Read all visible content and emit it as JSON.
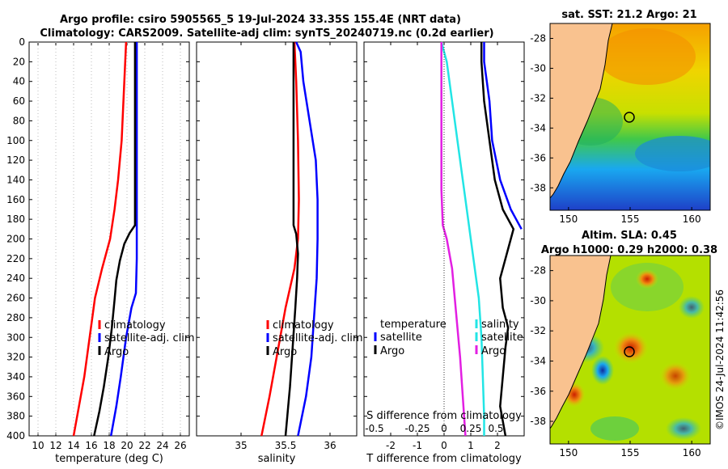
{
  "title": {
    "line1": "Argo profile: csiro 5905565_5 19-Jul-2024 33.35S 155.4E (NRT data)",
    "line2": "Climatology: CARS2009. Satellite-adj clim: synTS_20240719.nc (0.2d earlier)"
  },
  "colors": {
    "climatology": "#ff0000",
    "satellite": "#0000ff",
    "argo": "#000000",
    "cyan": "#22e5e5",
    "magenta": "#e21fe2",
    "land": "#f9c28f"
  },
  "chart_data": [
    {
      "type": "line",
      "name": "temperature",
      "xlabel": "temperature (deg C)",
      "xlim": [
        9,
        27
      ],
      "xticks": [
        10,
        12,
        14,
        16,
        18,
        20,
        22,
        24,
        26
      ],
      "ylim": [
        0,
        400
      ],
      "yticks": [
        0,
        20,
        40,
        60,
        80,
        100,
        120,
        140,
        160,
        180,
        200,
        220,
        240,
        260,
        280,
        300,
        320,
        340,
        360,
        380,
        400
      ],
      "legend": [
        "climatology",
        "satellite-adj. clim",
        "Argo"
      ],
      "series": [
        {
          "name": "climatology",
          "color": "red",
          "points": [
            [
              19.9,
              0
            ],
            [
              19.8,
              20
            ],
            [
              19.6,
              60
            ],
            [
              19.4,
              100
            ],
            [
              19.0,
              140
            ],
            [
              18.6,
              170
            ],
            [
              18.1,
              200
            ],
            [
              17.2,
              230
            ],
            [
              16.4,
              260
            ],
            [
              15.8,
              300
            ],
            [
              15.2,
              340
            ],
            [
              14.6,
              370
            ],
            [
              14.0,
              400
            ]
          ]
        },
        {
          "name": "satellite-adj. clim",
          "color": "blue",
          "points": [
            [
              21.1,
              0
            ],
            [
              21.1,
              50
            ],
            [
              21.1,
              100
            ],
            [
              21.1,
              150
            ],
            [
              21.1,
              200
            ],
            [
              21.1,
              220
            ],
            [
              21.0,
              255
            ],
            [
              20.5,
              270
            ],
            [
              19.9,
              300
            ],
            [
              19.3,
              340
            ],
            [
              18.8,
              370
            ],
            [
              18.2,
              400
            ]
          ]
        },
        {
          "name": "Argo",
          "color": "black",
          "points": [
            [
              20.9,
              0
            ],
            [
              20.9,
              40
            ],
            [
              20.9,
              80
            ],
            [
              20.9,
              120
            ],
            [
              20.9,
              160
            ],
            [
              20.9,
              186
            ],
            [
              20.3,
              194
            ],
            [
              19.7,
              205
            ],
            [
              19.2,
              222
            ],
            [
              18.8,
              242
            ],
            [
              18.6,
              262
            ],
            [
              18.3,
              290
            ],
            [
              17.9,
              320
            ],
            [
              17.4,
              350
            ],
            [
              16.9,
              375
            ],
            [
              16.3,
              400
            ]
          ]
        }
      ]
    },
    {
      "type": "line",
      "name": "salinity",
      "xlabel": "salinity",
      "xlim": [
        34.5,
        36.3
      ],
      "xticks": [
        35,
        35.5,
        36
      ],
      "xtick_labels": [
        "35",
        "35.5",
        "36"
      ],
      "ylim": [
        0,
        400
      ],
      "legend": [
        "climatology",
        "satellite-adj. clim",
        "Argo"
      ],
      "series": [
        {
          "name": "climatology",
          "color": "red",
          "points": [
            [
              35.6,
              0
            ],
            [
              35.62,
              40
            ],
            [
              35.64,
              100
            ],
            [
              35.65,
              160
            ],
            [
              35.64,
              200
            ],
            [
              35.6,
              230
            ],
            [
              35.5,
              270
            ],
            [
              35.4,
              320
            ],
            [
              35.32,
              360
            ],
            [
              35.23,
              400
            ]
          ]
        },
        {
          "name": "satellite-adj. clim",
          "color": "blue",
          "points": [
            [
              35.62,
              0
            ],
            [
              35.67,
              10
            ],
            [
              35.7,
              40
            ],
            [
              35.77,
              80
            ],
            [
              35.84,
              120
            ],
            [
              35.86,
              160
            ],
            [
              35.86,
              200
            ],
            [
              35.85,
              240
            ],
            [
              35.82,
              280
            ],
            [
              35.79,
              320
            ],
            [
              35.73,
              360
            ],
            [
              35.64,
              400
            ]
          ]
        },
        {
          "name": "Argo",
          "color": "black",
          "points": [
            [
              35.59,
              0
            ],
            [
              35.59,
              50
            ],
            [
              35.59,
              100
            ],
            [
              35.59,
              150
            ],
            [
              35.59,
              186
            ],
            [
              35.62,
              195
            ],
            [
              35.64,
              215
            ],
            [
              35.63,
              240
            ],
            [
              35.61,
              270
            ],
            [
              35.58,
              310
            ],
            [
              35.55,
              350
            ],
            [
              35.52,
              380
            ],
            [
              35.5,
              400
            ]
          ]
        }
      ]
    },
    {
      "type": "line",
      "name": "difference",
      "xlabel": "T difference from climatology",
      "xlim": [
        -3,
        3
      ],
      "xticks": [
        -2,
        -1,
        0,
        1,
        2
      ],
      "xtick_labels": [
        "-2",
        "-1",
        "0",
        "1",
        "2"
      ],
      "secondary_xlabel": "S difference from climatology",
      "secondary_xtick_labels": [
        "-0.5",
        "-0.25",
        "0",
        "0.25",
        "0.5"
      ],
      "ylim": [
        0,
        400
      ],
      "legend_left": [
        "temperature",
        "satellite",
        "Argo"
      ],
      "legend_right": [
        "salinity",
        "satellite",
        "Argo"
      ],
      "series": [
        {
          "name": "temperature satellite",
          "color": "blue",
          "points": [
            [
              1.5,
              0
            ],
            [
              1.5,
              20
            ],
            [
              1.7,
              60
            ],
            [
              1.8,
              100
            ],
            [
              2.1,
              140
            ],
            [
              2.5,
              170
            ],
            [
              2.9,
              190
            ]
          ]
        },
        {
          "name": "temperature Argo",
          "color": "black",
          "points": [
            [
              1.4,
              0
            ],
            [
              1.4,
              20
            ],
            [
              1.5,
              60
            ],
            [
              1.7,
              100
            ],
            [
              1.9,
              140
            ],
            [
              2.2,
              170
            ],
            [
              2.6,
              190
            ],
            [
              2.5,
              200
            ],
            [
              2.1,
              240
            ],
            [
              2.2,
              270
            ],
            [
              2.4,
              290
            ],
            [
              2.3,
              310
            ],
            [
              2.2,
              340
            ],
            [
              2.1,
              370
            ],
            [
              2.3,
              400
            ]
          ]
        },
        {
          "name": "salinity satellite",
          "color": "cyan",
          "points": [
            [
              -0.1,
              0
            ],
            [
              0.1,
              20
            ],
            [
              0.3,
              60
            ],
            [
              0.5,
              100
            ],
            [
              0.7,
              140
            ],
            [
              0.9,
              180
            ],
            [
              1.1,
              220
            ],
            [
              1.3,
              260
            ],
            [
              1.4,
              300
            ],
            [
              1.45,
              340
            ],
            [
              1.5,
              380
            ],
            [
              1.5,
              400
            ]
          ]
        },
        {
          "name": "salinity Argo",
          "color": "magenta",
          "points": [
            [
              -0.1,
              0
            ],
            [
              -0.1,
              50
            ],
            [
              -0.1,
              100
            ],
            [
              -0.1,
              150
            ],
            [
              -0.05,
              186
            ],
            [
              0.1,
              200
            ],
            [
              0.3,
              230
            ],
            [
              0.4,
              260
            ],
            [
              0.5,
              290
            ],
            [
              0.6,
              320
            ],
            [
              0.7,
              360
            ],
            [
              0.8,
              400
            ]
          ]
        }
      ]
    },
    {
      "type": "heatmap",
      "name": "sst-map",
      "title": "sat. SST: 21.2 Argo: 21",
      "xticks": [
        150,
        155,
        160
      ],
      "yticks": [
        -28,
        -30,
        -32,
        -34,
        -36,
        -38
      ],
      "xlim": [
        148.5,
        161.5
      ],
      "ylim": [
        -39.5,
        -27
      ],
      "marker": {
        "lon": 155.4,
        "lat": -33.35
      }
    },
    {
      "type": "heatmap",
      "name": "sla-map",
      "title_line1": "Altim. SLA: 0.45",
      "title_line2": "Argo h1000: 0.29 h2000: 0.38",
      "xticks": [
        150,
        155,
        160
      ],
      "yticks": [
        -28,
        -30,
        -32,
        -34,
        -36,
        -38
      ],
      "xlim": [
        148.5,
        161.5
      ],
      "ylim": [
        -39.5,
        -27
      ],
      "marker": {
        "lon": 155.4,
        "lat": -33.35
      }
    }
  ],
  "watermark": "©IMOS 24-Jul-2024 11:42:56"
}
